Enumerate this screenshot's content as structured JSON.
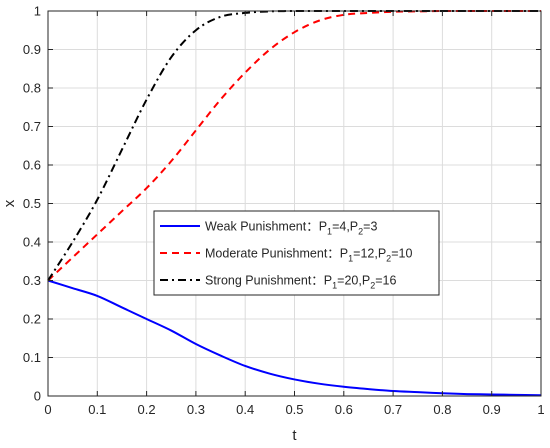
{
  "chart_data": {
    "type": "line",
    "title": "",
    "xlabel": "t",
    "ylabel": "x",
    "xlim": [
      0,
      1
    ],
    "ylim": [
      0,
      1
    ],
    "xticks": [
      "0",
      "0.1",
      "0.2",
      "0.3",
      "0.4",
      "0.5",
      "0.6",
      "0.7",
      "0.8",
      "0.9",
      "1"
    ],
    "yticks": [
      "0",
      "0.1",
      "0.2",
      "0.3",
      "0.4",
      "0.5",
      "0.6",
      "0.7",
      "0.8",
      "0.9",
      "1"
    ],
    "grid": true,
    "legend_position": "center",
    "x": [
      0,
      0.05,
      0.1,
      0.15,
      0.2,
      0.25,
      0.3,
      0.35,
      0.4,
      0.45,
      0.5,
      0.55,
      0.6,
      0.65,
      0.7,
      0.75,
      0.8,
      0.85,
      0.9,
      0.95,
      1.0
    ],
    "series": [
      {
        "name_main": "Weak Punishment：P",
        "name_sub1": "1",
        "name_mid": "=4,P",
        "name_sub2": "2",
        "name_end": "=3",
        "color": "#0000ff",
        "style": "solid",
        "values": [
          0.3,
          0.28,
          0.26,
          0.23,
          0.2,
          0.17,
          0.135,
          0.105,
          0.078,
          0.058,
          0.043,
          0.032,
          0.024,
          0.018,
          0.013,
          0.01,
          0.007,
          0.005,
          0.004,
          0.003,
          0.002
        ]
      },
      {
        "name_main": "Moderate Punishment：P",
        "name_sub1": "1",
        "name_mid": "=12,P",
        "name_sub2": "2",
        "name_end": "=10",
        "color": "#ff0000",
        "style": "dashed",
        "values": [
          0.3,
          0.36,
          0.42,
          0.48,
          0.54,
          0.61,
          0.69,
          0.77,
          0.84,
          0.9,
          0.945,
          0.975,
          0.99,
          0.995,
          0.998,
          0.999,
          1.0,
          1.0,
          1.0,
          1.0,
          1.0
        ]
      },
      {
        "name_main": "Strong Punishment：P",
        "name_sub1": "1",
        "name_mid": "=20,P",
        "name_sub2": "2",
        "name_end": "=16",
        "color": "#000000",
        "style": "dashdot",
        "values": [
          0.3,
          0.4,
          0.51,
          0.64,
          0.77,
          0.88,
          0.95,
          0.985,
          0.995,
          0.999,
          1.0,
          1.0,
          1.0,
          1.0,
          1.0,
          1.0,
          1.0,
          1.0,
          1.0,
          1.0,
          1.0
        ]
      }
    ]
  }
}
